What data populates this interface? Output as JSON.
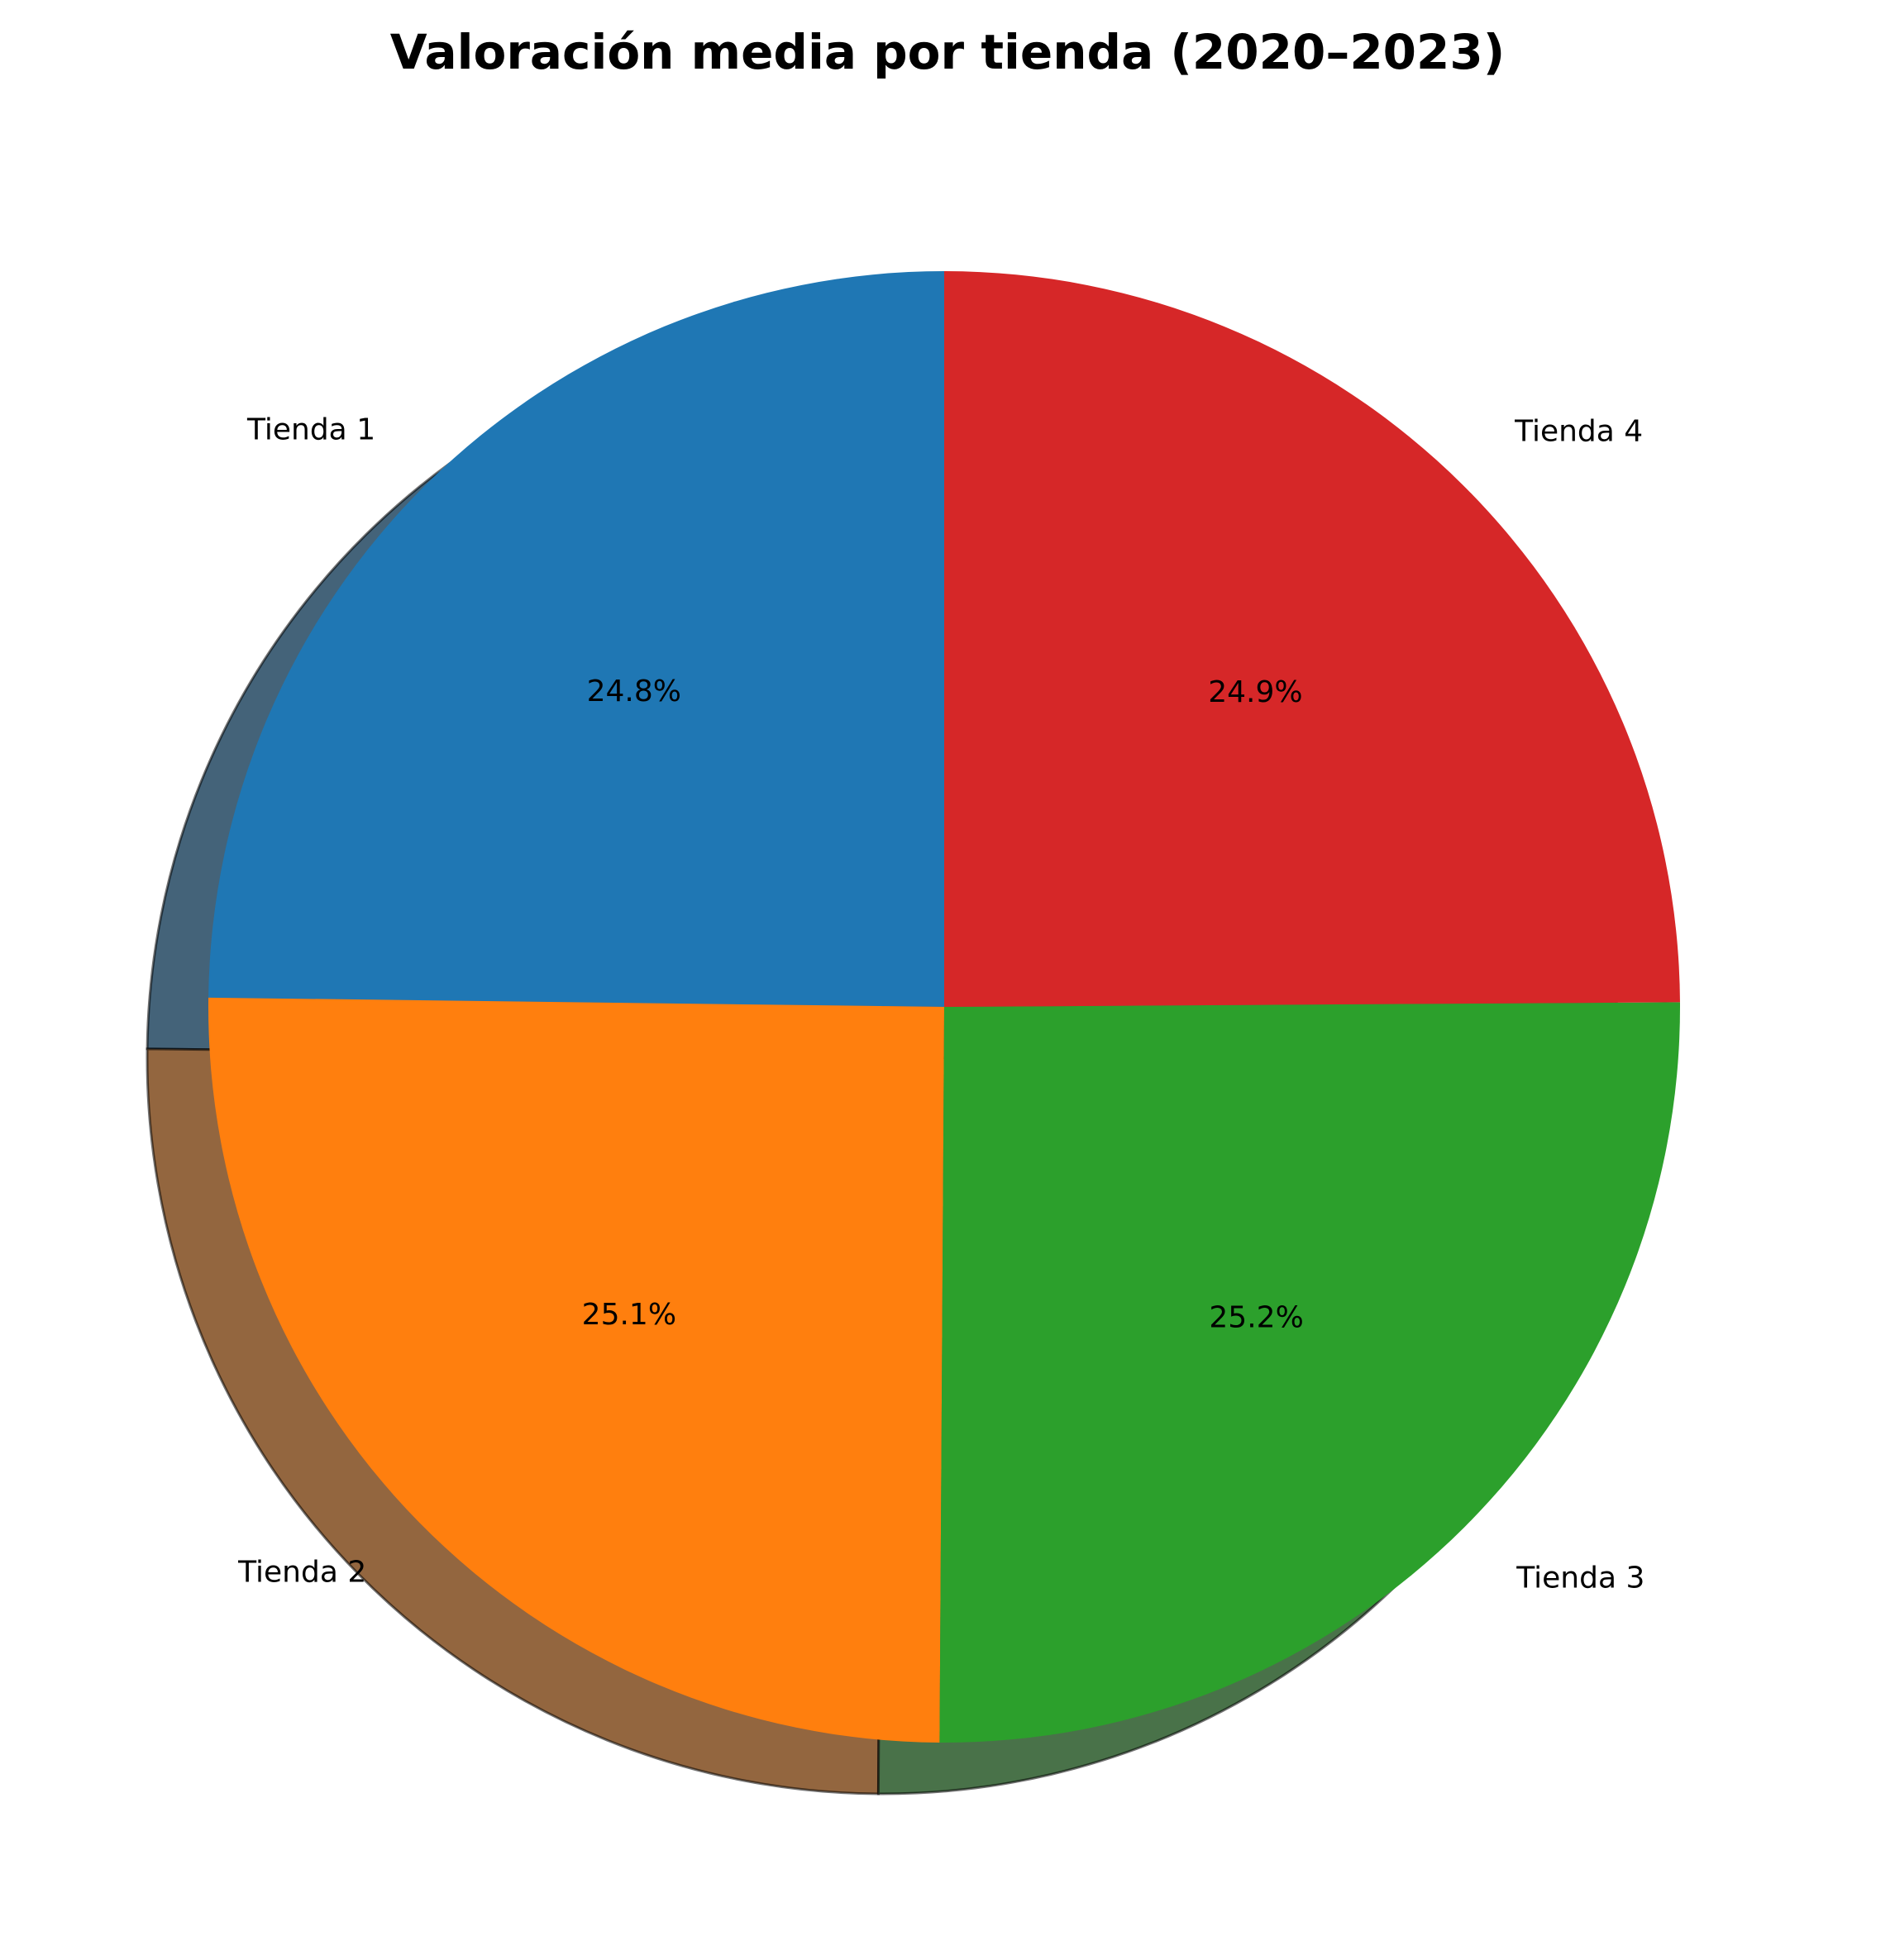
{
  "chart_data": {
    "type": "pie",
    "title": "Valoración media por tienda (2020–2023)",
    "categories": [
      "Tienda 1",
      "Tienda 2",
      "Tienda 3",
      "Tienda 4"
    ],
    "values": [
      24.8,
      25.1,
      25.2,
      24.9
    ],
    "value_labels": [
      "24.8%",
      "25.1%",
      "25.2%",
      "24.9%"
    ],
    "colors": [
      "#1f77b4",
      "#ff7f0e",
      "#2ca02c",
      "#d62728"
    ],
    "start_angle_deg": 90,
    "direction": "counterclockwise",
    "shadow": true,
    "legend": "none"
  }
}
